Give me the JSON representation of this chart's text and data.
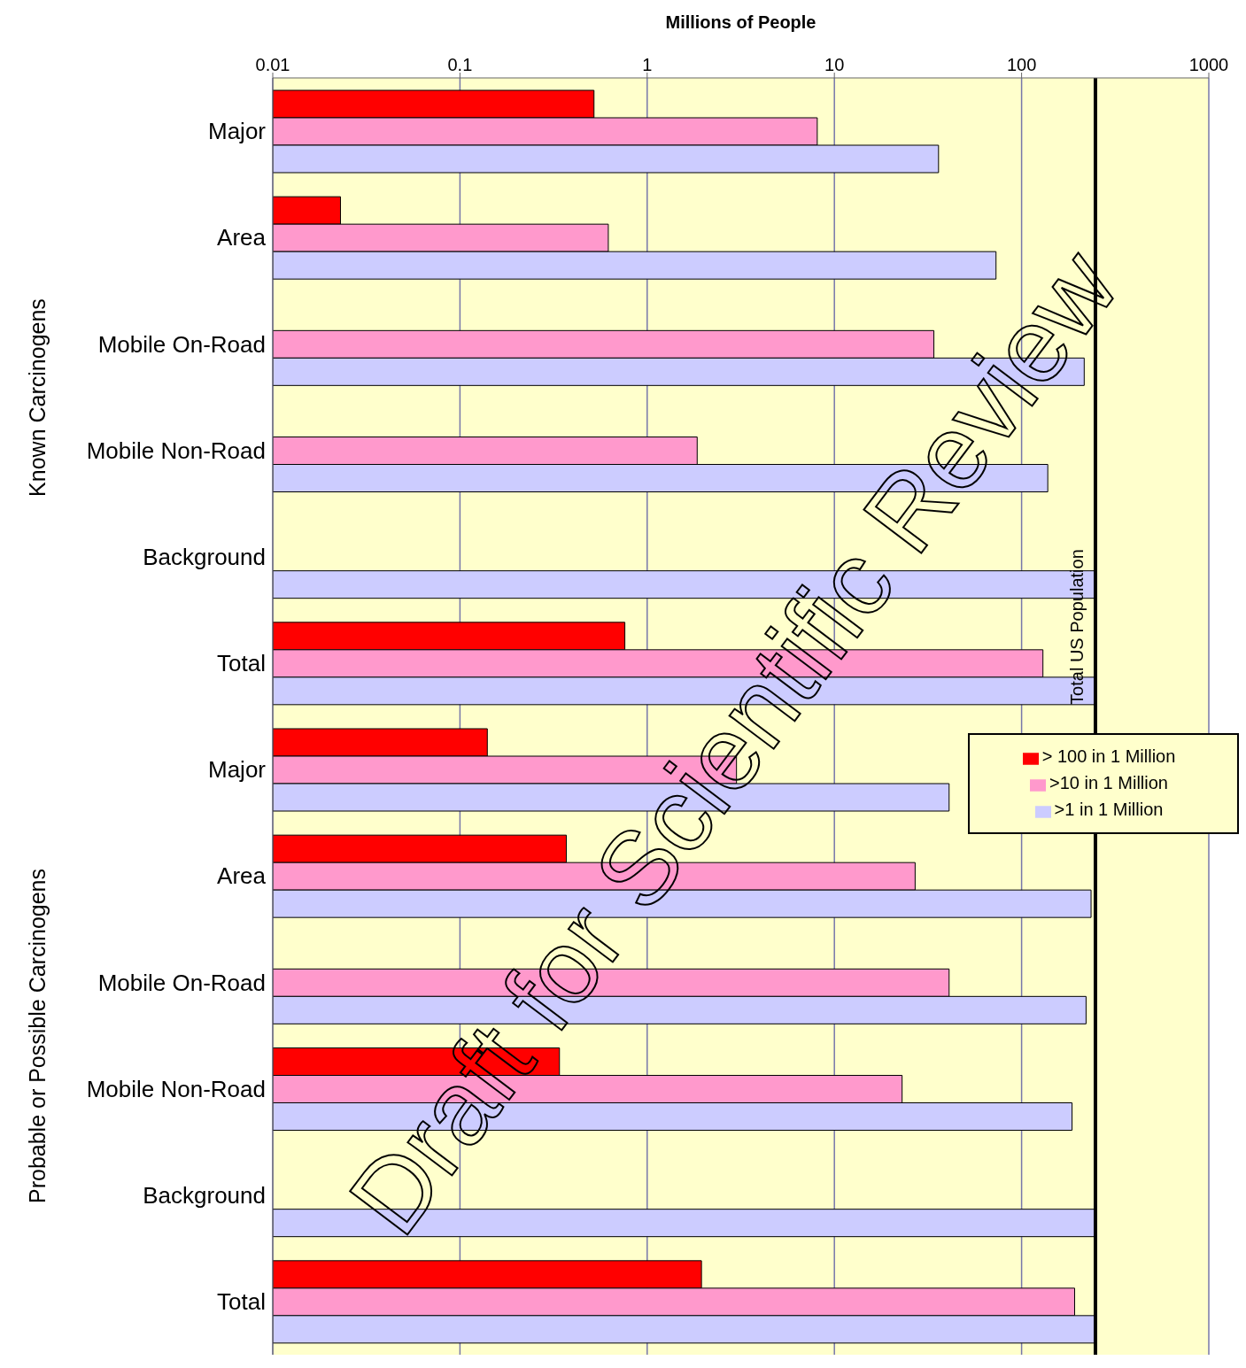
{
  "chart_data": {
    "type": "bar",
    "orientation": "horizontal",
    "log": "x",
    "xlabel": "Millions of People",
    "categories": [
      "Major",
      "Area",
      "Mobile On-Road",
      "Mobile Non-Road",
      "Background",
      "Total",
      "Major",
      "Area",
      "Mobile On-Road",
      "Mobile Non-Road",
      "Background",
      "Total"
    ],
    "series": [
      {
        "name": "> 100 in 1 Million",
        "color": "#ff0000",
        "values": [
          0.52,
          0.023,
          null,
          null,
          null,
          0.76,
          0.14,
          0.37,
          null,
          0.34,
          null,
          1.95
        ]
      },
      {
        "name": ">10 in 1 Million",
        "color": "#ff99cc",
        "values": [
          8.1,
          0.62,
          34,
          1.85,
          null,
          130,
          3.0,
          27,
          41,
          23,
          null,
          192
        ]
      },
      {
        "name": ">1 in 1 Million",
        "color": "#ccccff",
        "values": [
          36,
          73,
          216,
          138,
          248,
          248,
          41,
          235,
          221,
          186,
          248,
          248
        ]
      }
    ],
    "xlim": [
      0.01,
      1000
    ],
    "xticks": [
      0.01,
      0.1,
      1,
      10,
      100,
      1000
    ],
    "grid": "x",
    "legend": "right",
    "ref_lines": [
      {
        "axis": "x",
        "value": 248,
        "label": "Total US Population"
      }
    ],
    "annotations": [
      "Known Carcinogens",
      "Probable or Possible Carcinogens",
      "Draft for Scientific Review"
    ]
  }
}
